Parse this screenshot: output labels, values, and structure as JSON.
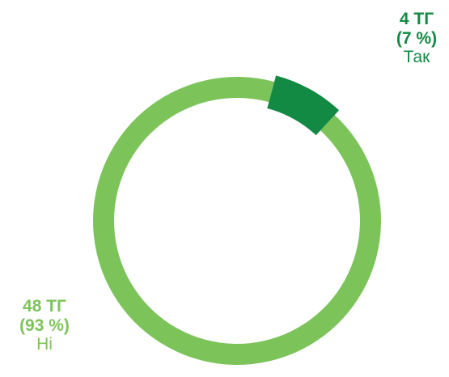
{
  "chart_data": {
    "type": "pie",
    "variant": "donut",
    "slices": [
      {
        "label": "Так",
        "value": 4,
        "value_text": "4 ТГ",
        "percent_text": "(7 %)",
        "color": "#128a43"
      },
      {
        "label": "Ні",
        "value": 48,
        "value_text": "48 ТГ",
        "percent_text": "(93 %)",
        "color": "#7cc45a"
      }
    ]
  }
}
